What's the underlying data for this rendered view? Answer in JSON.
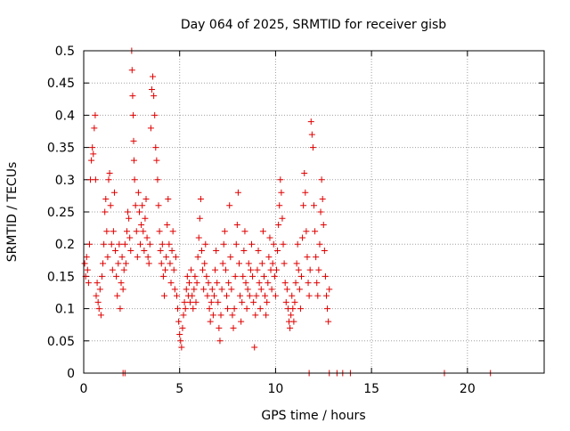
{
  "chart_data": {
    "type": "scatter",
    "title": "Day 064 of 2025, SRMTID for receiver gisb",
    "xlabel": "GPS time / hours",
    "ylabel": "SRMTID / TECUs",
    "xlim": [
      0,
      24
    ],
    "ylim": [
      0,
      0.5
    ],
    "x_ticks": [
      0,
      5,
      10,
      15,
      20
    ],
    "y_ticks": [
      0,
      0.05,
      0.1,
      0.15,
      0.2,
      0.25,
      0.3,
      0.35,
      0.4,
      0.45,
      0.5
    ],
    "x_tick_labels": [
      "0",
      "5",
      "10",
      "15",
      "20"
    ],
    "y_tick_labels": [
      "0",
      "0.05",
      "0.1",
      "0.15",
      "0.2",
      "0.25",
      "0.3",
      "0.35",
      "0.4",
      "0.45",
      "0.5"
    ],
    "grid": true,
    "marker": "+",
    "marker_color": "#e00000",
    "series": [
      {
        "points": [
          [
            0.05,
            0.17
          ],
          [
            0.1,
            0.15
          ],
          [
            0.15,
            0.18
          ],
          [
            0.2,
            0.16
          ],
          [
            0.25,
            0.14
          ],
          [
            0.3,
            0.2
          ],
          [
            0.35,
            0.3
          ],
          [
            0.4,
            0.33
          ],
          [
            0.45,
            0.35
          ],
          [
            0.5,
            0.34
          ],
          [
            0.55,
            0.38
          ],
          [
            0.6,
            0.4
          ],
          [
            0.62,
            0.3
          ],
          [
            0.65,
            0.12
          ],
          [
            0.7,
            0.14
          ],
          [
            0.75,
            0.11
          ],
          [
            0.8,
            0.1
          ],
          [
            0.85,
            0.13
          ],
          [
            0.9,
            0.09
          ],
          [
            0.95,
            0.15
          ],
          [
            1.0,
            0.17
          ],
          [
            1.05,
            0.2
          ],
          [
            1.1,
            0.25
          ],
          [
            1.15,
            0.27
          ],
          [
            1.2,
            0.22
          ],
          [
            1.25,
            0.18
          ],
          [
            1.3,
            0.3
          ],
          [
            1.35,
            0.31
          ],
          [
            1.4,
            0.26
          ],
          [
            1.45,
            0.2
          ],
          [
            1.5,
            0.16
          ],
          [
            1.55,
            0.22
          ],
          [
            1.6,
            0.28
          ],
          [
            1.65,
            0.19
          ],
          [
            1.7,
            0.15
          ],
          [
            1.75,
            0.12
          ],
          [
            1.8,
            0.17
          ],
          [
            1.85,
            0.2
          ],
          [
            1.9,
            0.1
          ],
          [
            1.95,
            0.14
          ],
          [
            2.0,
            0.18
          ],
          [
            2.05,
            0.13
          ],
          [
            2.1,
            0.16
          ],
          [
            2.15,
            0.2
          ],
          [
            2.2,
            0.17
          ],
          [
            2.25,
            0.22
          ],
          [
            2.3,
            0.25
          ],
          [
            2.35,
            0.24
          ],
          [
            2.4,
            0.21
          ],
          [
            2.45,
            0.19
          ],
          [
            2.5,
            0.5
          ],
          [
            2.52,
            0.47
          ],
          [
            2.55,
            0.43
          ],
          [
            2.58,
            0.4
          ],
          [
            2.6,
            0.36
          ],
          [
            2.62,
            0.33
          ],
          [
            2.65,
            0.3
          ],
          [
            2.7,
            0.26
          ],
          [
            2.75,
            0.22
          ],
          [
            2.8,
            0.18
          ],
          [
            2.85,
            0.28
          ],
          [
            2.9,
            0.25
          ],
          [
            2.95,
            0.2
          ],
          [
            3.0,
            0.23
          ],
          [
            3.05,
            0.26
          ],
          [
            3.1,
            0.22
          ],
          [
            3.15,
            0.19
          ],
          [
            3.2,
            0.24
          ],
          [
            3.25,
            0.27
          ],
          [
            3.3,
            0.21
          ],
          [
            3.35,
            0.18
          ],
          [
            3.4,
            0.17
          ],
          [
            3.45,
            0.2
          ],
          [
            3.5,
            0.38
          ],
          [
            3.55,
            0.44
          ],
          [
            3.6,
            0.46
          ],
          [
            3.65,
            0.43
          ],
          [
            3.7,
            0.4
          ],
          [
            3.75,
            0.35
          ],
          [
            3.8,
            0.33
          ],
          [
            3.85,
            0.3
          ],
          [
            3.9,
            0.26
          ],
          [
            3.95,
            0.22
          ],
          [
            4.0,
            0.19
          ],
          [
            4.05,
            0.17
          ],
          [
            4.1,
            0.2
          ],
          [
            4.15,
            0.15
          ],
          [
            4.2,
            0.12
          ],
          [
            4.25,
            0.16
          ],
          [
            4.3,
            0.18
          ],
          [
            4.35,
            0.23
          ],
          [
            4.4,
            0.27
          ],
          [
            4.45,
            0.2
          ],
          [
            4.5,
            0.17
          ],
          [
            4.55,
            0.14
          ],
          [
            4.6,
            0.19
          ],
          [
            4.65,
            0.22
          ],
          [
            4.7,
            0.16
          ],
          [
            4.75,
            0.13
          ],
          [
            4.8,
            0.18
          ],
          [
            4.85,
            0.12
          ],
          [
            4.9,
            0.1
          ],
          [
            4.95,
            0.08
          ],
          [
            5.0,
            0.06
          ],
          [
            5.05,
            0.05
          ],
          [
            5.1,
            0.04
          ],
          [
            5.15,
            0.07
          ],
          [
            5.2,
            0.09
          ],
          [
            5.25,
            0.11
          ],
          [
            5.3,
            0.1
          ],
          [
            5.35,
            0.13
          ],
          [
            5.4,
            0.15
          ],
          [
            5.45,
            0.12
          ],
          [
            5.5,
            0.14
          ],
          [
            5.55,
            0.11
          ],
          [
            5.6,
            0.16
          ],
          [
            5.65,
            0.12
          ],
          [
            5.7,
            0.1
          ],
          [
            5.75,
            0.13
          ],
          [
            5.8,
            0.15
          ],
          [
            5.85,
            0.11
          ],
          [
            5.9,
            0.14
          ],
          [
            5.95,
            0.18
          ],
          [
            6.0,
            0.21
          ],
          [
            6.05,
            0.24
          ],
          [
            6.1,
            0.27
          ],
          [
            6.15,
            0.19
          ],
          [
            6.2,
            0.16
          ],
          [
            6.25,
            0.13
          ],
          [
            6.3,
            0.17
          ],
          [
            6.35,
            0.2
          ],
          [
            6.4,
            0.15
          ],
          [
            6.45,
            0.12
          ],
          [
            6.5,
            0.14
          ],
          [
            6.55,
            0.1
          ],
          [
            6.6,
            0.08
          ],
          [
            6.65,
            0.11
          ],
          [
            6.7,
            0.13
          ],
          [
            6.75,
            0.09
          ],
          [
            6.8,
            0.12
          ],
          [
            6.85,
            0.16
          ],
          [
            6.9,
            0.19
          ],
          [
            6.95,
            0.14
          ],
          [
            7.0,
            0.11
          ],
          [
            7.05,
            0.07
          ],
          [
            7.1,
            0.05
          ],
          [
            7.15,
            0.09
          ],
          [
            7.2,
            0.13
          ],
          [
            7.25,
            0.17
          ],
          [
            7.3,
            0.2
          ],
          [
            7.35,
            0.22
          ],
          [
            7.4,
            0.16
          ],
          [
            7.45,
            0.12
          ],
          [
            7.5,
            0.1
          ],
          [
            7.55,
            0.14
          ],
          [
            7.6,
            0.26
          ],
          [
            7.65,
            0.18
          ],
          [
            7.7,
            0.13
          ],
          [
            7.75,
            0.09
          ],
          [
            7.8,
            0.07
          ],
          [
            7.85,
            0.1
          ],
          [
            7.9,
            0.15
          ],
          [
            7.95,
            0.2
          ],
          [
            8.0,
            0.23
          ],
          [
            8.05,
            0.28
          ],
          [
            8.1,
            0.17
          ],
          [
            8.15,
            0.12
          ],
          [
            8.2,
            0.08
          ],
          [
            8.25,
            0.11
          ],
          [
            8.3,
            0.15
          ],
          [
            8.35,
            0.19
          ],
          [
            8.4,
            0.22
          ],
          [
            8.45,
            0.14
          ],
          [
            8.5,
            0.1
          ],
          [
            8.55,
            0.13
          ],
          [
            8.6,
            0.17
          ],
          [
            8.65,
            0.12
          ],
          [
            8.7,
            0.16
          ],
          [
            8.75,
            0.2
          ],
          [
            8.8,
            0.15
          ],
          [
            8.85,
            0.11
          ],
          [
            8.9,
            0.04
          ],
          [
            8.95,
            0.09
          ],
          [
            9.0,
            0.12
          ],
          [
            9.05,
            0.16
          ],
          [
            9.1,
            0.19
          ],
          [
            9.15,
            0.14
          ],
          [
            9.2,
            0.1
          ],
          [
            9.25,
            0.13
          ],
          [
            9.3,
            0.17
          ],
          [
            9.35,
            0.22
          ],
          [
            9.4,
            0.15
          ],
          [
            9.45,
            0.12
          ],
          [
            9.5,
            0.09
          ],
          [
            9.55,
            0.11
          ],
          [
            9.6,
            0.14
          ],
          [
            9.65,
            0.18
          ],
          [
            9.7,
            0.21
          ],
          [
            9.75,
            0.16
          ],
          [
            9.8,
            0.13
          ],
          [
            9.85,
            0.17
          ],
          [
            9.9,
            0.2
          ],
          [
            9.95,
            0.15
          ],
          [
            10.0,
            0.12
          ],
          [
            10.05,
            0.16
          ],
          [
            10.1,
            0.19
          ],
          [
            10.15,
            0.23
          ],
          [
            10.2,
            0.26
          ],
          [
            10.25,
            0.3
          ],
          [
            10.3,
            0.28
          ],
          [
            10.35,
            0.24
          ],
          [
            10.4,
            0.2
          ],
          [
            10.45,
            0.17
          ],
          [
            10.5,
            0.14
          ],
          [
            10.55,
            0.11
          ],
          [
            10.6,
            0.13
          ],
          [
            10.65,
            0.1
          ],
          [
            10.7,
            0.08
          ],
          [
            10.75,
            0.07
          ],
          [
            10.8,
            0.09
          ],
          [
            10.85,
            0.12
          ],
          [
            10.9,
            0.1
          ],
          [
            10.95,
            0.08
          ],
          [
            11.0,
            0.11
          ],
          [
            11.05,
            0.14
          ],
          [
            11.1,
            0.17
          ],
          [
            11.15,
            0.2
          ],
          [
            11.2,
            0.16
          ],
          [
            11.25,
            0.13
          ],
          [
            11.3,
            0.1
          ],
          [
            11.35,
            0.15
          ],
          [
            11.4,
            0.21
          ],
          [
            11.45,
            0.26
          ],
          [
            11.5,
            0.31
          ],
          [
            11.55,
            0.28
          ],
          [
            11.6,
            0.22
          ],
          [
            11.65,
            0.18
          ],
          [
            11.7,
            0.14
          ],
          [
            11.75,
            0.12
          ],
          [
            11.8,
            0.16
          ],
          [
            11.85,
            0.39
          ],
          [
            11.9,
            0.37
          ],
          [
            11.95,
            0.35
          ],
          [
            12.0,
            0.26
          ],
          [
            12.05,
            0.22
          ],
          [
            12.1,
            0.18
          ],
          [
            12.15,
            0.14
          ],
          [
            12.2,
            0.12
          ],
          [
            12.25,
            0.16
          ],
          [
            12.3,
            0.2
          ],
          [
            12.35,
            0.25
          ],
          [
            12.4,
            0.3
          ],
          [
            12.45,
            0.27
          ],
          [
            12.5,
            0.23
          ],
          [
            12.55,
            0.19
          ],
          [
            12.6,
            0.15
          ],
          [
            12.65,
            0.12
          ],
          [
            12.7,
            0.1
          ],
          [
            12.75,
            0.08
          ],
          [
            12.8,
            0.13
          ],
          [
            2.05,
            0.0
          ],
          [
            2.15,
            0.0
          ],
          [
            11.75,
            0.0
          ],
          [
            12.8,
            0.0
          ],
          [
            13.2,
            0.0
          ],
          [
            13.5,
            0.0
          ],
          [
            13.9,
            0.0
          ],
          [
            18.8,
            0.0
          ],
          [
            21.2,
            0.0
          ]
        ]
      }
    ]
  }
}
